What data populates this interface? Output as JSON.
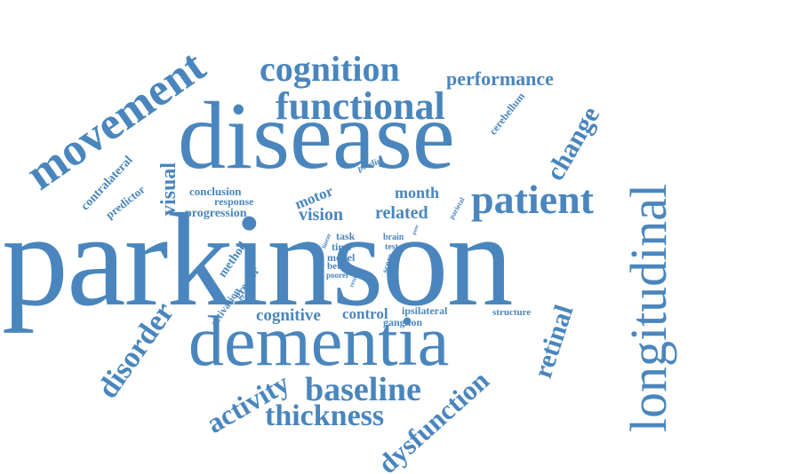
{
  "word_cloud": {
    "color": "#4a86bd",
    "words": {
      "parkinson": "parkinson",
      "disease": "disease",
      "dementia": "dementia",
      "longitudinal": "longitudinal",
      "movement": "movement",
      "functional": "functional",
      "cognition": "cognition",
      "patient": "patient",
      "baseline": "baseline",
      "thickness": "thickness",
      "dysfunction": "dysfunction",
      "disorder": "disorder",
      "activity": "activity",
      "retinal": "retinal",
      "change": "change",
      "performance": "performance",
      "visual": "visual",
      "cognitive": "cognitive",
      "control": "control",
      "vision": "vision",
      "related": "related",
      "month": "month",
      "motor": "motor",
      "progression": "progression",
      "conclusion": "conclusion",
      "response": "response",
      "contralateral": "contralateral",
      "predictor": "predictor",
      "cerebellum": "cerebellum",
      "predict": "predict",
      "method": "method",
      "greater": "greater",
      "activation": "activation",
      "ipsilateral": "ipsilateral",
      "ganglion": "ganglion",
      "structure": "structure",
      "task": "task",
      "time": "time",
      "model": "model",
      "better": "better",
      "poorer": "poorer",
      "linear": "linear",
      "result": "result",
      "brain": "brain",
      "test": "test",
      "score": "score",
      "effect": "effect",
      "parietal": "parietal",
      "poor": "poor"
    }
  }
}
